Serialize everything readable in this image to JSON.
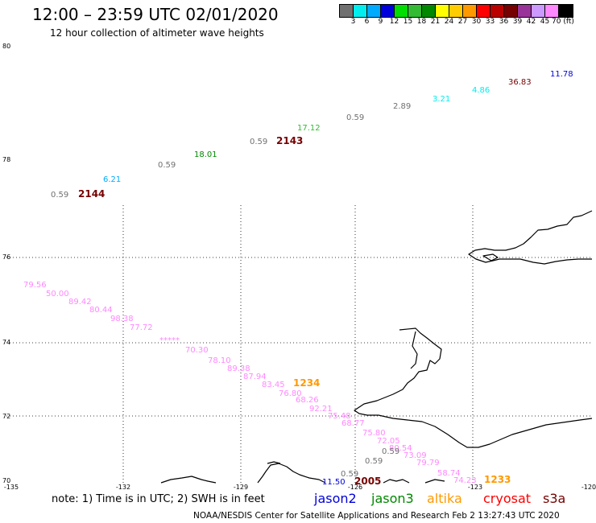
{
  "header": {
    "title": "12:00 – 23:59 UTC 02/01/2020",
    "subtitle": "12 hour collection of altimeter wave heights"
  },
  "colorbar": {
    "colors": [
      "#707070",
      "#00eeee",
      "#00aaff",
      "#0000dd",
      "#00dd00",
      "#33bb33",
      "#008800",
      "#ffff00",
      "#ffcc00",
      "#ff9900",
      "#ff0000",
      "#bb0000",
      "#770000",
      "#993399",
      "#cc99ff",
      "#ff88ff",
      "#000000"
    ],
    "labels": [
      "3",
      "6",
      "9",
      "12",
      "15",
      "18",
      "21",
      "24",
      "27",
      "30",
      "33",
      "36",
      "39",
      "42",
      "45",
      "70 (ft)"
    ]
  },
  "map": {
    "lat_labels": [
      "80",
      "78",
      "76",
      "74",
      "72",
      "70"
    ],
    "lon_labels": [
      "-135",
      "-132",
      "-129",
      "-126",
      "-123",
      "-120"
    ],
    "track_upper_1": [
      {
        "text": "0.59",
        "color": "#707070"
      },
      {
        "text": "2144",
        "color": "#770000",
        "bold": true
      },
      {
        "text": "6.21",
        "color": "#00aaff"
      },
      {
        "text": "0.59",
        "color": "#707070"
      },
      {
        "text": "18.01",
        "color": "#008800"
      },
      {
        "text": "0.59",
        "color": "#707070"
      },
      {
        "text": "2143",
        "color": "#770000",
        "bold": true
      },
      {
        "text": "17.12",
        "color": "#33bb33"
      },
      {
        "text": "0.59",
        "color": "#707070"
      },
      {
        "text": "2.89",
        "color": "#707070"
      },
      {
        "text": "3.21",
        "color": "#00eeee"
      },
      {
        "text": "4.86",
        "color": "#00eeee"
      },
      {
        "text": "36.83",
        "color": "#770000"
      },
      {
        "text": "11.78",
        "color": "#0000dd"
      }
    ],
    "track_lower": [
      {
        "text": "79.56",
        "color": "#ff88ff"
      },
      {
        "text": "50.00",
        "color": "#ff88ff"
      },
      {
        "text": "89.42",
        "color": "#ff88ff"
      },
      {
        "text": "80.44",
        "color": "#ff88ff"
      },
      {
        "text": "98.38",
        "color": "#ff88ff"
      },
      {
        "text": "77.72",
        "color": "#ff88ff"
      },
      {
        "text": "*****",
        "color": "#ff88ff"
      },
      {
        "text": "70.30",
        "color": "#ff88ff"
      },
      {
        "text": "78.10",
        "color": "#ff88ff"
      },
      {
        "text": "89.38",
        "color": "#ff88ff"
      },
      {
        "text": "87.94",
        "color": "#ff88ff"
      },
      {
        "text": "83.45",
        "color": "#ff88ff"
      },
      {
        "text": "1234",
        "color": "#ff9900",
        "bold": true
      },
      {
        "text": "76.80",
        "color": "#ff88ff"
      },
      {
        "text": "68.26",
        "color": "#ff88ff"
      },
      {
        "text": "92.21",
        "color": "#ff88ff"
      },
      {
        "text": "75.48",
        "color": "#ff88ff"
      },
      {
        "text": "68.77",
        "color": "#ff88ff"
      },
      {
        "text": "75.80",
        "color": "#ff88ff"
      },
      {
        "text": "72.05",
        "color": "#ff88ff"
      },
      {
        "text": "80.54",
        "color": "#ff88ff"
      },
      {
        "text": "0.59",
        "color": "#707070"
      },
      {
        "text": "0.59",
        "color": "#707070"
      },
      {
        "text": "73.09",
        "color": "#ff88ff"
      },
      {
        "text": "79.79",
        "color": "#ff88ff"
      },
      {
        "text": "58.74",
        "color": "#ff88ff"
      },
      {
        "text": "74.23",
        "color": "#ff88ff"
      },
      {
        "text": "1233",
        "color": "#ff9900",
        "bold": true
      },
      {
        "text": "0.59",
        "color": "#707070"
      },
      {
        "text": "11.50",
        "color": "#0000dd"
      },
      {
        "text": "2005",
        "color": "#770000",
        "bold": true
      }
    ]
  },
  "footer": {
    "note": "note:  1) Time is in UTC;  2) SWH is in feet",
    "satellites": [
      {
        "name": "jason2",
        "color": "#0000dd"
      },
      {
        "name": "jason3",
        "color": "#008800"
      },
      {
        "name": "altika",
        "color": "#ff9900"
      },
      {
        "name": "cryosat",
        "color": "#ff0000"
      },
      {
        "name": "s3a",
        "color": "#770000"
      }
    ],
    "credit": "NOAA/NESDIS Center for Satellite Applications and Research    Feb  2 13:27:43 UTC 2020"
  }
}
